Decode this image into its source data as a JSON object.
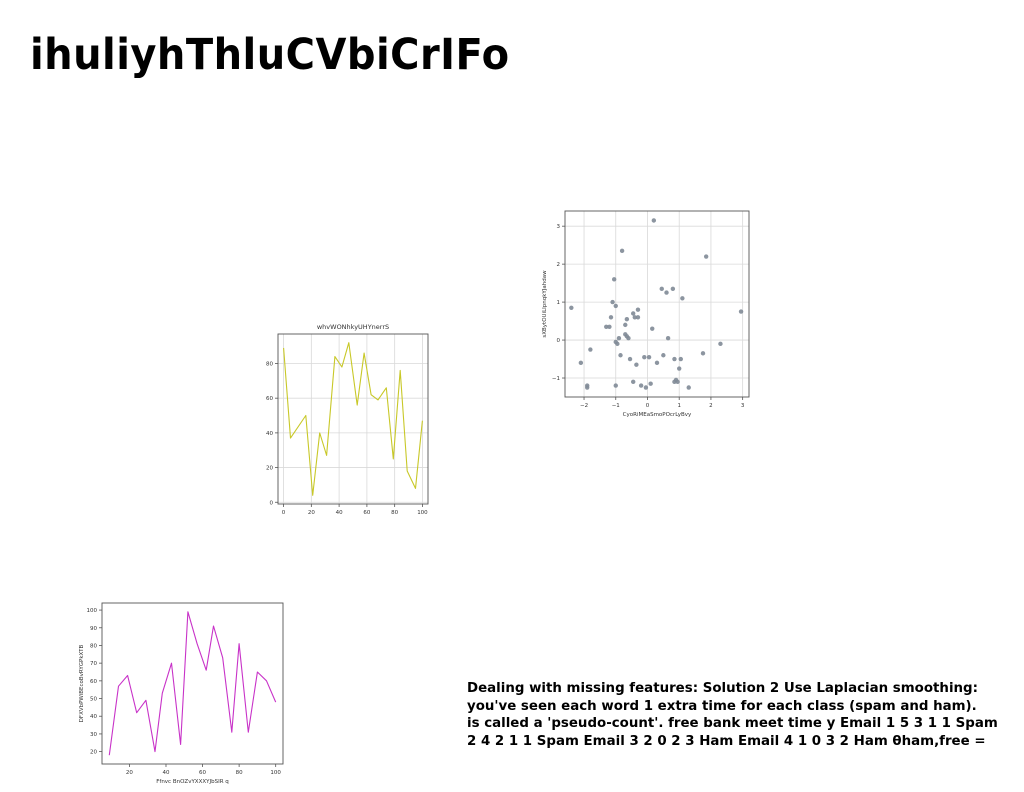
{
  "slide": {
    "title": "ihuliyhThluCVbiCrIFo",
    "body_text": "Dealing with missing features: Solution 2 Use Laplacian smoothing:\nyou've seen each word 1 extra time for each class (spam and ham).\nis called a 'pseudo-count'. free bank meet time y Email 1 5 3 1 1 Spam\n2 4 2 1 1 Spam Email 3 2 0 2 3 Ham Email 4 1 0 3 2 Ham θham,free ="
  },
  "chart_data": [
    {
      "id": "line-yellow",
      "type": "line",
      "title": "whvWONhkyUHYnerrS",
      "xlabel": "",
      "ylabel": "",
      "color": "#c8c828",
      "grid": true,
      "xlim": [
        -4,
        104
      ],
      "ylim": [
        -1,
        97
      ],
      "xticks": [
        0,
        20,
        40,
        60,
        80,
        100
      ],
      "yticks": [
        0,
        20,
        40,
        60,
        80
      ],
      "series": [
        {
          "x": [
            0,
            5,
            16,
            21,
            26,
            31,
            37,
            42,
            47,
            53,
            58,
            63,
            68,
            74,
            79,
            84,
            89,
            95,
            100
          ],
          "y": [
            89,
            37,
            50,
            4,
            40,
            27,
            84,
            78,
            92,
            56,
            86,
            62,
            59,
            66,
            25,
            76,
            18,
            8,
            47
          ]
        }
      ]
    },
    {
      "id": "scatter-gray",
      "type": "scatter",
      "title": "",
      "xlabel": "CyoRiMEaSmoPOcrLyBvy",
      "ylabel": "sXBytOUiLIpnqkYJahdaw",
      "color": "#7f8a96",
      "grid": true,
      "xlim": [
        -2.6,
        3.2
      ],
      "ylim": [
        -1.5,
        3.4
      ],
      "xticks": [
        -2,
        -1,
        0,
        1,
        2,
        3
      ],
      "yticks": [
        -1,
        0,
        1,
        2,
        3
      ],
      "series": [
        {
          "x": [
            -2.4,
            -2.1,
            -1.9,
            -1.9,
            -1.8,
            -1.3,
            -1.2,
            -1.1,
            -1.05,
            -1.0,
            -1.0,
            -0.95,
            -0.9,
            -0.85,
            -0.8,
            -0.7,
            -0.65,
            -0.65,
            -0.6,
            -0.55,
            -0.45,
            -0.45,
            -0.4,
            -0.35,
            -0.3,
            -0.3,
            -0.2,
            -0.1,
            -0.05,
            0.05,
            0.1,
            0.15,
            0.2,
            0.3,
            0.45,
            0.5,
            0.6,
            0.65,
            0.8,
            0.85,
            0.85,
            0.9,
            0.95,
            1.0,
            1.05,
            1.1,
            1.3,
            1.75,
            1.85,
            2.3,
            2.95,
            -1.0,
            -1.15,
            -0.7
          ],
          "y": [
            0.85,
            -0.6,
            -1.25,
            -1.2,
            -0.25,
            0.35,
            0.35,
            1.0,
            1.6,
            0.9,
            -1.2,
            -0.1,
            0.05,
            -0.4,
            2.35,
            0.4,
            0.55,
            0.1,
            0.05,
            -0.5,
            -1.1,
            0.7,
            0.6,
            -0.65,
            0.8,
            0.6,
            -1.2,
            -0.45,
            -1.25,
            -0.45,
            -1.15,
            0.3,
            3.15,
            -0.6,
            1.35,
            -0.4,
            1.25,
            0.05,
            1.35,
            -0.5,
            -1.1,
            -1.05,
            -1.1,
            -0.75,
            -0.5,
            1.1,
            -1.25,
            -0.35,
            2.2,
            -0.1,
            0.75,
            -0.05,
            0.6,
            0.15
          ]
        }
      ]
    },
    {
      "id": "line-purple",
      "type": "line",
      "title": "",
      "xlabel": "Ffnvc BnOZvYXXXYJbSIR q",
      "ylabel": "DFXVbPWiBEcoBvRYGPkXTB",
      "color": "#c832c8",
      "grid": false,
      "xlim": [
        5,
        104
      ],
      "ylim": [
        13,
        104
      ],
      "xticks": [
        20,
        40,
        60,
        80,
        100
      ],
      "yticks": [
        20,
        30,
        40,
        50,
        60,
        70,
        80,
        90,
        100
      ],
      "series": [
        {
          "x": [
            9,
            14,
            19,
            24,
            29,
            34,
            38,
            43,
            48,
            52,
            57,
            62,
            66,
            71,
            76,
            80,
            85,
            90,
            95,
            100
          ],
          "y": [
            18,
            57,
            63,
            42,
            49,
            20,
            53,
            70,
            24,
            99,
            81,
            66,
            91,
            73,
            31,
            81,
            31,
            65,
            60,
            48
          ]
        }
      ]
    }
  ]
}
